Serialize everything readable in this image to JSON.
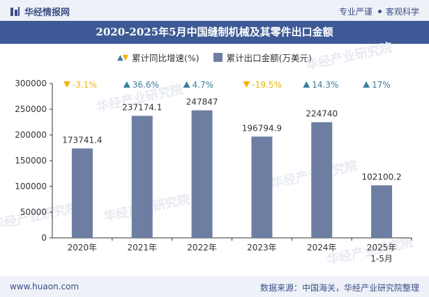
{
  "header": {
    "brand_name": "华经情报网",
    "tagline_left": "专业严谨",
    "tagline_right": "客观科学"
  },
  "title": "2020-2025年5月中国缝制机械及其零件出口金额",
  "legend": {
    "growth_label": "累计同比增速(%)",
    "value_label": "累计出口金额(万美元)"
  },
  "watermarks": [
    "华经产业研究院",
    "www.huaon.com"
  ],
  "colors": {
    "bar": "#6e7ea3",
    "up": "#3a7d9c",
    "down": "#f0b400",
    "title_bg": "#3d5a96"
  },
  "chart_data": {
    "type": "bar",
    "categories": [
      "2020年",
      "2021年",
      "2022年",
      "2023年",
      "2024年",
      "2025年\n1-5月"
    ],
    "series": [
      {
        "name": "累计出口金额(万美元)",
        "values": [
          173741.4,
          237174.1,
          247847,
          196794.9,
          224740,
          102100.2
        ]
      },
      {
        "name": "累计同比增速(%)",
        "values": [
          -3.1,
          36.6,
          4.7,
          -19.5,
          14.3,
          17
        ]
      }
    ],
    "value_labels": [
      "173741.4",
      "237174.1",
      "247847",
      "196794.9",
      "224740",
      "102100.2"
    ],
    "growth_labels": [
      "-3.1%",
      "36.6%",
      "4.7%",
      "-19.5%",
      "14.3%",
      "17%"
    ],
    "ylim": [
      0,
      300000
    ],
    "yticks": [
      0,
      50000,
      100000,
      150000,
      200000,
      250000,
      300000
    ],
    "grid": false,
    "legend_position": "top-center"
  },
  "footer": {
    "url": "www.huaon.com",
    "source": "数据来源：中国海关，华经产业研究院整理"
  }
}
